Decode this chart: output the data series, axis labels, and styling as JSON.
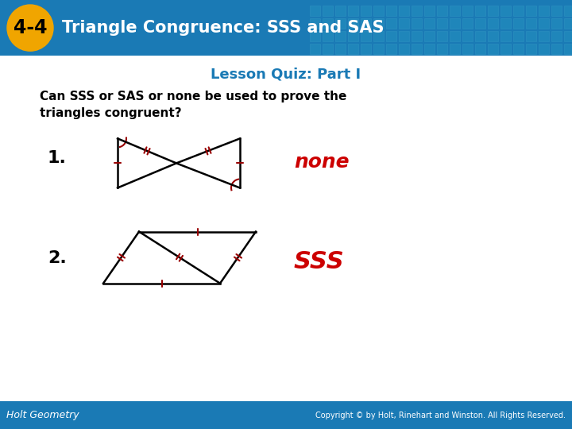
{
  "title_text": "4-4  Triangle Congruence: SSS and SAS",
  "subtitle_text": "Lesson Quiz: Part I",
  "question_text": "Can SSS or SAS or none be used to prove the\ntriangles congruent?",
  "header_bg": "#1a7ab5",
  "badge_color": "#f0a500",
  "title_color": "#ffffff",
  "subtitle_color": "#1a7ab5",
  "body_bg": "#ffffff",
  "footer_bg": "#1a7ab5",
  "footer_text_color": "#ffffff",
  "answer1_text": "none",
  "answer2_text": "SSS",
  "answer_color": "#cc0000",
  "label1": "1.",
  "label2": "2.",
  "label_color": "#000000",
  "q_text_color": "#000000",
  "footer_left": "Holt Geometry",
  "footer_right": "Copyright © by Holt, Rinehart and Winston. All Rights Reserved.",
  "tick_color": "#990000",
  "line_color": "#000000"
}
